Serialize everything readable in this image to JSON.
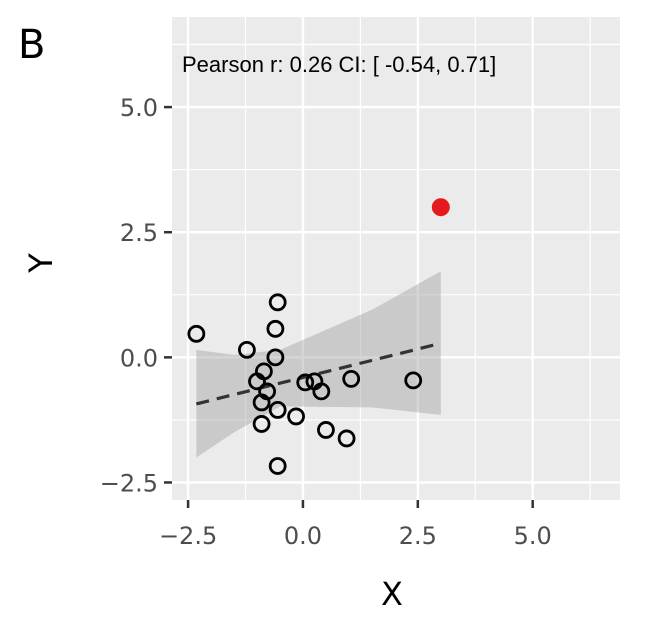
{
  "panel_label": "B",
  "chart_data": {
    "type": "scatter",
    "title": "",
    "annotation": "Pearson r: 0.26 CI: [ -0.54, 0.71]",
    "xlabel": "X",
    "ylabel": "Y",
    "xlim": [
      -2.85,
      6.9
    ],
    "ylim": [
      -2.85,
      6.8
    ],
    "x_ticks": [
      -2.5,
      0.0,
      2.5,
      5.0
    ],
    "x_tick_labels": [
      "−2.5",
      "0.0",
      "2.5",
      "5.0"
    ],
    "y_ticks": [
      -2.5,
      0.0,
      2.5,
      5.0
    ],
    "y_tick_labels": [
      "−2.5",
      "0.0",
      "2.5",
      "5.0"
    ],
    "grid": true,
    "background": "#ebebeb",
    "grid_color": "#ffffff",
    "points": [
      {
        "x": -2.32,
        "y": 0.47
      },
      {
        "x": -1.22,
        "y": 0.15
      },
      {
        "x": -1.0,
        "y": -0.48
      },
      {
        "x": -0.85,
        "y": -0.28
      },
      {
        "x": -0.78,
        "y": -0.68
      },
      {
        "x": -0.9,
        "y": -0.9
      },
      {
        "x": -0.9,
        "y": -1.33
      },
      {
        "x": -0.55,
        "y": 1.1
      },
      {
        "x": -0.6,
        "y": 0.57
      },
      {
        "x": -0.6,
        "y": 0.0
      },
      {
        "x": -0.55,
        "y": -1.05
      },
      {
        "x": -0.55,
        "y": -2.17
      },
      {
        "x": -0.15,
        "y": -1.18
      },
      {
        "x": 0.05,
        "y": -0.5
      },
      {
        "x": 0.25,
        "y": -0.48
      },
      {
        "x": 0.4,
        "y": -0.68
      },
      {
        "x": 0.5,
        "y": -1.45
      },
      {
        "x": 0.95,
        "y": -1.62
      },
      {
        "x": 1.05,
        "y": -0.43
      },
      {
        "x": 2.4,
        "y": -0.46
      }
    ],
    "outlier": {
      "x": 3.0,
      "y": 3.0,
      "color": "#e41a1c"
    },
    "fit_line": {
      "x": [
        -2.32,
        3.0
      ],
      "y": [
        -0.93,
        0.28
      ],
      "style": "dashed",
      "color": "#333333"
    },
    "confidence_band": {
      "x": [
        -2.32,
        -1.5,
        -0.5,
        0.5,
        1.5,
        3.0
      ],
      "upper": [
        0.15,
        0.05,
        0.15,
        0.55,
        0.95,
        1.72
      ],
      "lower": [
        -2.0,
        -1.5,
        -0.98,
        -0.99,
        -1.0,
        -1.15
      ],
      "color": "#999999"
    }
  }
}
